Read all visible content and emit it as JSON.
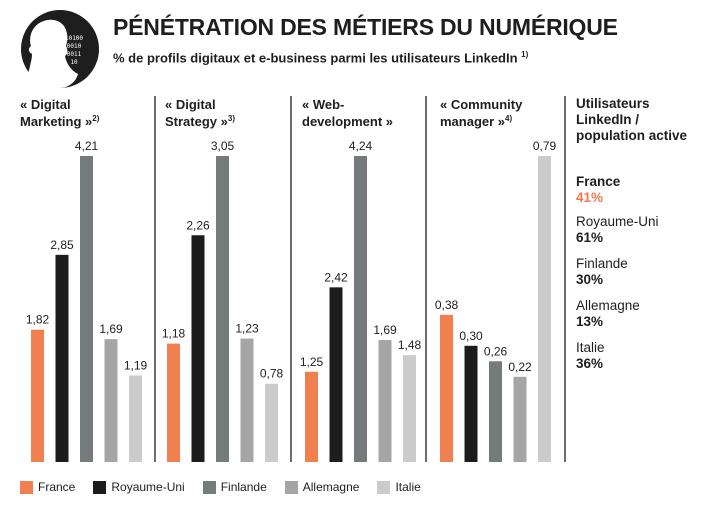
{
  "header": {
    "title": "PÉNÉTRATION DES MÉTIERS DU NUMÉRIQUE",
    "subtitle": "% de profils digitaux et e-business parmi les utilisateurs LinkedIn",
    "subtitle_note": "1)",
    "logo_binary": [
      "10100",
      "0010",
      "0011",
      "10"
    ]
  },
  "colors": {
    "France": "#f0804f",
    "Royaume-Uni": "#1c1c1c",
    "Finlande": "#747b7a",
    "Allemagne": "#a5a5a5",
    "Italie": "#cbcbcb",
    "divider": "#1e1e1e",
    "highlight": "#ef7a4d"
  },
  "chart_data": {
    "type": "bar",
    "countries": [
      "France",
      "Royaume-Uni",
      "Finlande",
      "Allemagne",
      "Italie"
    ],
    "groups": [
      {
        "title_lines": [
          "« Digital",
          "Marketing »"
        ],
        "note": "2)",
        "values": [
          1.82,
          2.85,
          4.21,
          1.69,
          1.19
        ],
        "labels": [
          "1,82",
          "2,85",
          "4,21",
          "1,69",
          "1,19"
        ],
        "ymax": 4.21
      },
      {
        "title_lines": [
          "« Digital",
          "Strategy »"
        ],
        "note": "3)",
        "values": [
          1.18,
          2.26,
          3.05,
          1.23,
          0.78
        ],
        "labels": [
          "1,18",
          "2,26",
          "3,05",
          "1,23",
          "0,78"
        ],
        "ymax": 3.05
      },
      {
        "title_lines": [
          "« Web-",
          "development »"
        ],
        "note": "",
        "values": [
          1.25,
          2.42,
          4.24,
          1.69,
          1.48
        ],
        "labels": [
          "1,25",
          "2,42",
          "4,24",
          "1,69",
          "1,48"
        ],
        "ymax": 4.24
      },
      {
        "title_lines": [
          "« Community",
          "manager »"
        ],
        "note": "4)",
        "values": [
          0.38,
          0.3,
          0.26,
          0.22,
          0.79
        ],
        "labels": [
          "0,38",
          "0,30",
          "0,26",
          "0,22",
          "0,79"
        ],
        "ymax": 0.79
      }
    ]
  },
  "legend": [
    "France",
    "Royaume-Uni",
    "Finlande",
    "Allemagne",
    "Italie"
  ],
  "sidebar": {
    "header_lines": [
      "Utilisateurs",
      "LinkedIn /",
      "population active"
    ],
    "entries": [
      {
        "country": "France",
        "value": "41%"
      },
      {
        "country": "Royaume-Uni",
        "value": "61%"
      },
      {
        "country": "Finlande",
        "value": "30%"
      },
      {
        "country": "Allemagne",
        "value": "13%"
      },
      {
        "country": "Italie",
        "value": "36%"
      }
    ]
  }
}
